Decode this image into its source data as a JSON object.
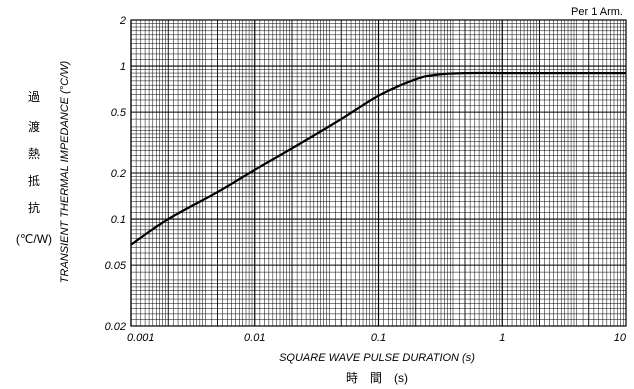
{
  "chart_data": {
    "type": "line",
    "title": "",
    "corner_note": "Per 1 Arm.",
    "xlabel": "SQUARE WAVE PULSE DURATION (s)",
    "xlabel_jp": "時　間　(s)",
    "ylabel": "TRANSIENT THERMAL IMPEDANCE (°C/W)",
    "ylabel_jp": [
      "過",
      "渡",
      "熱",
      "抵",
      "抗",
      "(℃/W)"
    ],
    "x_scale": "log",
    "y_scale": "log",
    "xlim": [
      0.001,
      10
    ],
    "ylim": [
      0.02,
      2
    ],
    "grid": true,
    "x_ticks": [
      {
        "value": 0.001,
        "label": "0.001"
      },
      {
        "value": 0.01,
        "label": "0.01"
      },
      {
        "value": 0.1,
        "label": "0.1"
      },
      {
        "value": 1,
        "label": "1"
      },
      {
        "value": 10,
        "label": "10"
      }
    ],
    "y_ticks": [
      {
        "value": 0.02,
        "label": "0.02"
      },
      {
        "value": 0.05,
        "label": "0.05"
      },
      {
        "value": 0.1,
        "label": "0.1"
      },
      {
        "value": 0.2,
        "label": "0.2"
      },
      {
        "value": 0.5,
        "label": "0.5"
      },
      {
        "value": 1,
        "label": "1"
      },
      {
        "value": 2,
        "label": "2"
      }
    ],
    "series": [
      {
        "x": [
          0.001,
          0.002,
          0.005,
          0.01,
          0.02,
          0.05,
          0.1,
          0.2,
          0.3,
          0.5,
          1,
          2,
          5,
          10
        ],
        "y": [
          0.068,
          0.1,
          0.15,
          0.21,
          0.29,
          0.45,
          0.64,
          0.82,
          0.88,
          0.9,
          0.9,
          0.9,
          0.9,
          0.9
        ]
      }
    ]
  },
  "colors": {
    "line": "#000000",
    "grid": "#000000",
    "background": "#ffffff"
  }
}
